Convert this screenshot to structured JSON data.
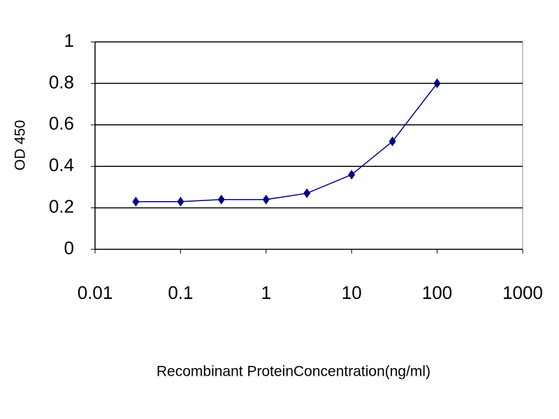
{
  "chart_data": {
    "type": "line",
    "x_label": "Recombinant ProteinConcentration(ng/ml)",
    "y_label": "OD 450",
    "xscale": "log",
    "xlim": [
      0.01,
      1000
    ],
    "xticks": [
      0.01,
      0.1,
      1,
      10,
      100,
      1000
    ],
    "ylim": [
      0,
      1
    ],
    "yticks": [
      0,
      0.2,
      0.4,
      0.6,
      0.8,
      1
    ],
    "grid": true,
    "series": [
      {
        "color": "#000080",
        "x": [
          0.03,
          0.1,
          0.3,
          1,
          3,
          10,
          30,
          100
        ],
        "values": [
          0.23,
          0.23,
          0.24,
          0.24,
          0.27,
          0.36,
          0.52,
          0.8
        ]
      }
    ]
  }
}
